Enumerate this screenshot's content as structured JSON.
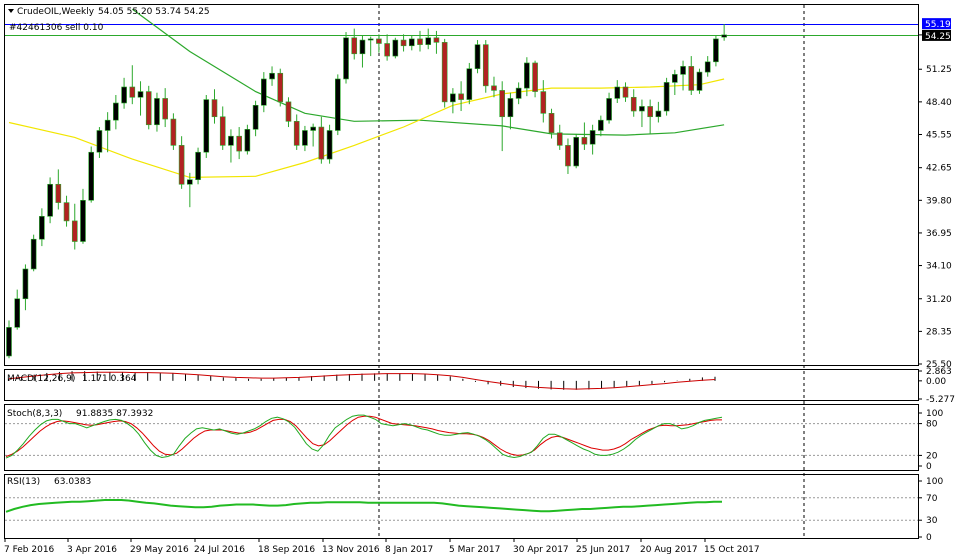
{
  "window": {
    "symbol": "CrudeOIL,Weekly",
    "ohlc": "54.05 55.20 53.74 54.25",
    "order_label": "#42461306 sell 0.10",
    "line_price_label": "55.19",
    "current_price_label": "54.25"
  },
  "colors": {
    "bull": "#000000",
    "bear": "#b22222",
    "ma_slow": "#2ca82c",
    "ma_fast": "#f2e600",
    "hline_blue": "#0000ff",
    "hline_green": "#2ca82c",
    "macd_signal": "#cc0000",
    "stoch_main": "#22aa22",
    "stoch_signal": "#dd0000",
    "rsi": "#22bb22"
  },
  "x_axis": {
    "labels": [
      "7 Feb 2016",
      "3 Apr 2016",
      "29 May 2016",
      "24 Jul 2016",
      "18 Sep 2016",
      "13 Nov 2016",
      "8 Jan 2017",
      "5 Mar 2017",
      "30 Apr 2017",
      "25 Jun 2017",
      "20 Aug 2017",
      "15 Oct 2017"
    ]
  },
  "chart_data": {
    "type": "candlestick",
    "title": "CrudeOIL,Weekly",
    "timeframe": "Weekly",
    "ylim": [
      25.5,
      57.0
    ],
    "price_ticks": [
      "54.25",
      "51.25",
      "48.40",
      "45.55",
      "42.65",
      "39.80",
      "36.95",
      "34.10",
      "31.20",
      "28.35",
      "25.50"
    ],
    "horizontal_lines": [
      {
        "value": 55.19,
        "color": "blue"
      },
      {
        "value": 54.25,
        "color": "green"
      }
    ],
    "candles": [
      {
        "o": 26.2,
        "h": 29.3,
        "l": 26.0,
        "c": 28.7
      },
      {
        "o": 28.7,
        "h": 32.0,
        "l": 28.5,
        "c": 31.2
      },
      {
        "o": 31.2,
        "h": 34.2,
        "l": 30.2,
        "c": 33.8
      },
      {
        "o": 33.8,
        "h": 36.8,
        "l": 33.6,
        "c": 36.4
      },
      {
        "o": 36.4,
        "h": 39.1,
        "l": 35.8,
        "c": 38.4
      },
      {
        "o": 38.4,
        "h": 41.8,
        "l": 37.8,
        "c": 41.2
      },
      {
        "o": 41.2,
        "h": 42.5,
        "l": 39.0,
        "c": 39.6
      },
      {
        "o": 39.6,
        "h": 40.2,
        "l": 37.5,
        "c": 38.0
      },
      {
        "o": 38.0,
        "h": 39.5,
        "l": 35.5,
        "c": 36.2
      },
      {
        "o": 36.2,
        "h": 40.8,
        "l": 36.0,
        "c": 39.8
      },
      {
        "o": 39.8,
        "h": 44.5,
        "l": 39.6,
        "c": 44.0
      },
      {
        "o": 44.0,
        "h": 46.2,
        "l": 43.5,
        "c": 45.9
      },
      {
        "o": 45.9,
        "h": 47.5,
        "l": 44.0,
        "c": 46.8
      },
      {
        "o": 46.8,
        "h": 49.0,
        "l": 46.0,
        "c": 48.3
      },
      {
        "o": 48.3,
        "h": 50.5,
        "l": 47.8,
        "c": 49.7
      },
      {
        "o": 49.7,
        "h": 51.6,
        "l": 48.2,
        "c": 48.8
      },
      {
        "o": 48.8,
        "h": 50.2,
        "l": 47.2,
        "c": 49.3
      },
      {
        "o": 49.3,
        "h": 49.8,
        "l": 46.0,
        "c": 46.4
      },
      {
        "o": 46.4,
        "h": 49.2,
        "l": 45.8,
        "c": 48.7
      },
      {
        "o": 48.7,
        "h": 49.6,
        "l": 46.2,
        "c": 46.9
      },
      {
        "o": 46.9,
        "h": 47.4,
        "l": 44.2,
        "c": 44.6
      },
      {
        "o": 44.6,
        "h": 45.4,
        "l": 40.8,
        "c": 41.2
      },
      {
        "o": 41.2,
        "h": 42.2,
        "l": 39.2,
        "c": 41.6
      },
      {
        "o": 41.6,
        "h": 44.4,
        "l": 41.2,
        "c": 44.0
      },
      {
        "o": 44.0,
        "h": 49.0,
        "l": 43.5,
        "c": 48.6
      },
      {
        "o": 48.6,
        "h": 49.5,
        "l": 46.5,
        "c": 47.1
      },
      {
        "o": 47.1,
        "h": 48.0,
        "l": 44.2,
        "c": 44.6
      },
      {
        "o": 44.6,
        "h": 46.0,
        "l": 43.1,
        "c": 45.4
      },
      {
        "o": 45.4,
        "h": 46.2,
        "l": 43.4,
        "c": 44.1
      },
      {
        "o": 44.1,
        "h": 46.4,
        "l": 43.8,
        "c": 46.0
      },
      {
        "o": 46.0,
        "h": 48.5,
        "l": 45.4,
        "c": 48.1
      },
      {
        "o": 48.1,
        "h": 51.0,
        "l": 47.5,
        "c": 50.4
      },
      {
        "o": 50.4,
        "h": 51.5,
        "l": 49.8,
        "c": 50.9
      },
      {
        "o": 50.9,
        "h": 51.3,
        "l": 48.0,
        "c": 48.4
      },
      {
        "o": 48.4,
        "h": 48.8,
        "l": 46.2,
        "c": 46.7
      },
      {
        "o": 46.7,
        "h": 47.3,
        "l": 44.2,
        "c": 44.6
      },
      {
        "o": 44.6,
        "h": 46.3,
        "l": 44.1,
        "c": 45.9
      },
      {
        "o": 45.9,
        "h": 46.5,
        "l": 44.5,
        "c": 46.2
      },
      {
        "o": 46.2,
        "h": 47.1,
        "l": 43.0,
        "c": 43.4
      },
      {
        "o": 43.4,
        "h": 46.4,
        "l": 43.0,
        "c": 45.9
      },
      {
        "o": 45.9,
        "h": 50.8,
        "l": 45.5,
        "c": 50.4
      },
      {
        "o": 50.4,
        "h": 54.5,
        "l": 50.0,
        "c": 54.0
      },
      {
        "o": 54.0,
        "h": 54.8,
        "l": 52.1,
        "c": 52.6
      },
      {
        "o": 52.6,
        "h": 54.2,
        "l": 51.4,
        "c": 53.8
      },
      {
        "o": 53.8,
        "h": 54.1,
        "l": 52.4,
        "c": 53.9
      },
      {
        "o": 53.9,
        "h": 54.3,
        "l": 52.7,
        "c": 53.5
      },
      {
        "o": 53.5,
        "h": 54.3,
        "l": 52.0,
        "c": 52.4
      },
      {
        "o": 52.4,
        "h": 54.0,
        "l": 52.2,
        "c": 53.8
      },
      {
        "o": 53.8,
        "h": 54.3,
        "l": 52.8,
        "c": 53.3
      },
      {
        "o": 53.3,
        "h": 54.2,
        "l": 52.9,
        "c": 53.9
      },
      {
        "o": 53.9,
        "h": 54.6,
        "l": 52.8,
        "c": 53.4
      },
      {
        "o": 53.4,
        "h": 54.8,
        "l": 53.0,
        "c": 54.0
      },
      {
        "o": 54.0,
        "h": 54.6,
        "l": 52.6,
        "c": 53.6
      },
      {
        "o": 53.6,
        "h": 53.9,
        "l": 47.9,
        "c": 48.4
      },
      {
        "o": 48.4,
        "h": 49.6,
        "l": 47.4,
        "c": 49.1
      },
      {
        "o": 49.1,
        "h": 50.2,
        "l": 47.6,
        "c": 48.6
      },
      {
        "o": 48.6,
        "h": 51.8,
        "l": 48.2,
        "c": 51.3
      },
      {
        "o": 51.3,
        "h": 53.8,
        "l": 50.9,
        "c": 53.4
      },
      {
        "o": 53.4,
        "h": 53.8,
        "l": 49.2,
        "c": 49.8
      },
      {
        "o": 49.8,
        "h": 50.6,
        "l": 48.8,
        "c": 49.4
      },
      {
        "o": 49.4,
        "h": 50.2,
        "l": 44.1,
        "c": 47.1
      },
      {
        "o": 47.1,
        "h": 49.2,
        "l": 46.0,
        "c": 48.7
      },
      {
        "o": 48.7,
        "h": 50.1,
        "l": 48.2,
        "c": 49.6
      },
      {
        "o": 49.6,
        "h": 52.3,
        "l": 48.9,
        "c": 51.8
      },
      {
        "o": 51.8,
        "h": 52.0,
        "l": 48.8,
        "c": 49.3
      },
      {
        "o": 49.3,
        "h": 50.3,
        "l": 46.6,
        "c": 47.4
      },
      {
        "o": 47.4,
        "h": 47.8,
        "l": 45.2,
        "c": 45.7
      },
      {
        "o": 45.7,
        "h": 46.4,
        "l": 44.2,
        "c": 44.6
      },
      {
        "o": 44.6,
        "h": 45.2,
        "l": 42.1,
        "c": 42.8
      },
      {
        "o": 42.8,
        "h": 45.6,
        "l": 42.6,
        "c": 45.3
      },
      {
        "o": 45.3,
        "h": 46.6,
        "l": 44.2,
        "c": 44.7
      },
      {
        "o": 44.7,
        "h": 46.4,
        "l": 43.8,
        "c": 45.9
      },
      {
        "o": 45.9,
        "h": 47.2,
        "l": 45.4,
        "c": 46.8
      },
      {
        "o": 46.8,
        "h": 49.2,
        "l": 46.5,
        "c": 48.7
      },
      {
        "o": 48.7,
        "h": 50.3,
        "l": 48.3,
        "c": 49.7
      },
      {
        "o": 49.7,
        "h": 50.1,
        "l": 48.4,
        "c": 48.8
      },
      {
        "o": 48.8,
        "h": 49.5,
        "l": 47.1,
        "c": 47.6
      },
      {
        "o": 47.6,
        "h": 48.6,
        "l": 46.2,
        "c": 48.0
      },
      {
        "o": 48.0,
        "h": 48.6,
        "l": 45.6,
        "c": 47.1
      },
      {
        "o": 47.1,
        "h": 48.4,
        "l": 46.6,
        "c": 47.6
      },
      {
        "o": 47.6,
        "h": 50.5,
        "l": 47.2,
        "c": 50.1
      },
      {
        "o": 50.1,
        "h": 51.2,
        "l": 49.0,
        "c": 50.8
      },
      {
        "o": 50.8,
        "h": 52.0,
        "l": 49.4,
        "c": 51.5
      },
      {
        "o": 51.5,
        "h": 52.4,
        "l": 49.0,
        "c": 49.4
      },
      {
        "o": 49.4,
        "h": 51.3,
        "l": 49.1,
        "c": 51.0
      },
      {
        "o": 51.0,
        "h": 52.4,
        "l": 50.6,
        "c": 51.9
      },
      {
        "o": 51.9,
        "h": 54.2,
        "l": 51.5,
        "c": 53.9
      },
      {
        "o": 54.05,
        "h": 55.2,
        "l": 53.74,
        "c": 54.25
      }
    ],
    "series": [
      {
        "name": "",
        "color": "green",
        "values": [
          {
            "i": 15,
            "v": 56.5
          },
          {
            "i": 22,
            "v": 52.8
          },
          {
            "i": 30,
            "v": 49.3
          },
          {
            "i": 36,
            "v": 47.4
          },
          {
            "i": 42,
            "v": 46.7
          },
          {
            "i": 50,
            "v": 46.8
          },
          {
            "i": 60,
            "v": 46.3
          },
          {
            "i": 66,
            "v": 45.6
          },
          {
            "i": 75,
            "v": 45.5
          },
          {
            "i": 81,
            "v": 45.7
          },
          {
            "i": 87,
            "v": 46.4
          }
        ]
      },
      {
        "name": "",
        "color": "yellow",
        "values": [
          {
            "i": 0,
            "v": 46.6
          },
          {
            "i": 8,
            "v": 45.3
          },
          {
            "i": 15,
            "v": 43.4
          },
          {
            "i": 22,
            "v": 41.8
          },
          {
            "i": 30,
            "v": 41.9
          },
          {
            "i": 36,
            "v": 43.1
          },
          {
            "i": 42,
            "v": 44.6
          },
          {
            "i": 48,
            "v": 46.2
          },
          {
            "i": 54,
            "v": 48.1
          },
          {
            "i": 60,
            "v": 49.1
          },
          {
            "i": 66,
            "v": 49.6
          },
          {
            "i": 72,
            "v": 49.6
          },
          {
            "i": 78,
            "v": 49.7
          },
          {
            "i": 84,
            "v": 49.9
          },
          {
            "i": 87,
            "v": 50.4
          }
        ]
      }
    ],
    "indicators": [
      {
        "name": "MACD(12,26,9)",
        "values_label": "1.171 0.364",
        "axis_labels": [
          "2.863",
          "0.00",
          "-5.277"
        ],
        "ylim": [
          -5.277,
          2.863
        ],
        "histogram": [
          0.6,
          1.2,
          1.8,
          2.3,
          2.6,
          2.8,
          2.8,
          2.7,
          2.6,
          2.5,
          2.5,
          2.5,
          2.4,
          2.3,
          2.1,
          1.8,
          1.4,
          1.0,
          0.8,
          0.6,
          0.6,
          0.7,
          0.9,
          1.1,
          1.4,
          1.6,
          1.8,
          2.0,
          2.1,
          2.2,
          2.2,
          2.2,
          2.2,
          2.1,
          1.8,
          1.3,
          0.6,
          -0.3,
          -1.0,
          -1.4,
          -1.8,
          -2.1,
          -2.3,
          -2.5,
          -2.6,
          -2.6,
          -2.5,
          -2.3,
          -2.0,
          -1.6,
          -1.3,
          -0.9,
          -0.4,
          0.1,
          0.6,
          1.0,
          1.2
        ],
        "signal": [
          0.6,
          1.0,
          1.4,
          1.8,
          2.1,
          2.3,
          2.4,
          2.5,
          2.5,
          2.5,
          2.4,
          2.4,
          2.3,
          2.2,
          2.0,
          1.8,
          1.5,
          1.2,
          1.0,
          0.9,
          0.8,
          0.8,
          0.9,
          1.0,
          1.2,
          1.4,
          1.6,
          1.8,
          1.9,
          2.0,
          2.1,
          2.1,
          2.1,
          2.0,
          1.8,
          1.5,
          1.0,
          0.4,
          -0.2,
          -0.7,
          -1.2,
          -1.6,
          -1.9,
          -2.1,
          -2.3,
          -2.4,
          -2.3,
          -2.2,
          -2.0,
          -1.7,
          -1.4,
          -1.1,
          -0.8,
          -0.4,
          -0.1,
          0.2,
          0.4
        ]
      },
      {
        "name": "Stoch(8,3,3)",
        "values_label": "91.8835 87.3932",
        "axis_labels": [
          "100",
          "80",
          "20",
          "0"
        ],
        "levels": [
          80,
          20
        ],
        "main": [
          15,
          20,
          30,
          42,
          56,
          68,
          78,
          85,
          88,
          88,
          84,
          80,
          80,
          76,
          72,
          76,
          80,
          84,
          87,
          88,
          86,
          80,
          72,
          60,
          44,
          30,
          20,
          16,
          18,
          22,
          38,
          52,
          62,
          70,
          72,
          70,
          68,
          70,
          66,
          62,
          60,
          62,
          66,
          70,
          76,
          84,
          90,
          92,
          89,
          83,
          73,
          58,
          42,
          32,
          28,
          40,
          58,
          72,
          80,
          88,
          94,
          96,
          96,
          92,
          88,
          80,
          78,
          76,
          78,
          80,
          78,
          74,
          70,
          68,
          64,
          60,
          58,
          58,
          60,
          62,
          63,
          60,
          56,
          50,
          42,
          32,
          22,
          18,
          16,
          18,
          22,
          26,
          38,
          52,
          60,
          60,
          56,
          50,
          44,
          38,
          32,
          28,
          22,
          20,
          20,
          22,
          26,
          32,
          40,
          50,
          58,
          64,
          70,
          76,
          80,
          80,
          76,
          70,
          72,
          76,
          82,
          86,
          88,
          90,
          92
        ],
        "signal": [
          18,
          22,
          28,
          36,
          46,
          56,
          66,
          74,
          80,
          84,
          85,
          84,
          82,
          80,
          78,
          77,
          78,
          80,
          82,
          84,
          85,
          84,
          80,
          72,
          62,
          50,
          38,
          28,
          22,
          21,
          24,
          32,
          42,
          52,
          60,
          66,
          68,
          68,
          68,
          66,
          64,
          62,
          62,
          64,
          68,
          74,
          80,
          86,
          88,
          88,
          84,
          76,
          64,
          52,
          42,
          38,
          40,
          48,
          58,
          68,
          78,
          86,
          92,
          94,
          94,
          92,
          88,
          84,
          80,
          79,
          78,
          77,
          76,
          74,
          72,
          70,
          67,
          65,
          63,
          62,
          61,
          61,
          60,
          58,
          54,
          48,
          40,
          32,
          26,
          22,
          20,
          21,
          24,
          30,
          40,
          48,
          54,
          56,
          54,
          50,
          46,
          42,
          38,
          34,
          32,
          30,
          30,
          32,
          36,
          42,
          50,
          56,
          62,
          68,
          72,
          76,
          77,
          76,
          76,
          77,
          78,
          80,
          82,
          84,
          86,
          87,
          87
        ]
      },
      {
        "name": "RSI(13)",
        "values_label": "63.0383",
        "axis_labels": [
          "100",
          "70",
          "30",
          "0"
        ],
        "levels": [
          70,
          30
        ],
        "values": [
          45,
          50,
          54,
          57,
          59,
          60,
          61,
          62,
          63,
          63,
          64,
          65,
          66,
          66,
          66,
          65,
          63,
          61,
          60,
          58,
          56,
          55,
          54,
          53,
          53,
          54,
          56,
          57,
          58,
          58,
          58,
          57,
          56,
          56,
          57,
          59,
          60,
          61,
          61,
          62,
          62,
          62,
          62,
          62,
          61,
          61,
          61,
          61,
          61,
          61,
          61,
          61,
          61,
          60,
          58,
          56,
          55,
          54,
          53,
          52,
          51,
          50,
          49,
          48,
          47,
          46,
          46,
          47,
          48,
          49,
          50,
          50,
          51,
          52,
          53,
          54,
          54,
          55,
          56,
          57,
          58,
          59,
          60,
          61,
          62,
          62,
          63,
          63
        ]
      }
    ]
  }
}
